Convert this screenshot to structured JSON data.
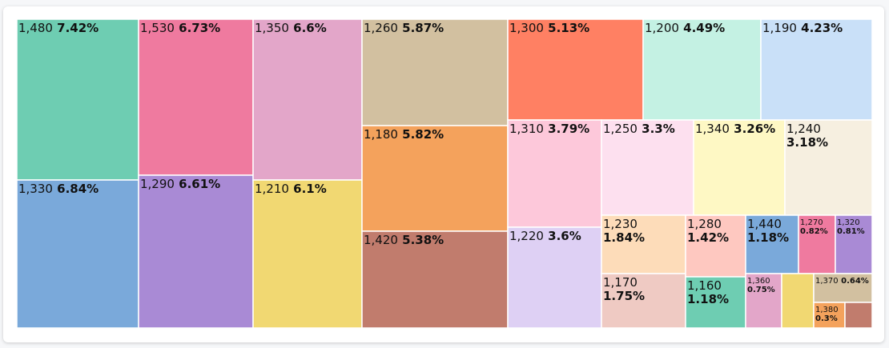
{
  "chart_data": {
    "type": "treemap",
    "title": "",
    "items": [
      {
        "value": "1,480",
        "percent": "7.42%",
        "color": "#6ecdb2"
      },
      {
        "value": "1,330",
        "percent": "6.84%",
        "color": "#7aa9da"
      },
      {
        "value": "1,530",
        "percent": "6.73%",
        "color": "#ef7a9f"
      },
      {
        "value": "1,290",
        "percent": "6.61%",
        "color": "#a98ad5"
      },
      {
        "value": "1,350",
        "percent": "6.6%",
        "color": "#e3a6c9"
      },
      {
        "value": "1,210",
        "percent": "6.1%",
        "color": "#f1d872"
      },
      {
        "value": "1,260",
        "percent": "5.87%",
        "color": "#d2c0a0"
      },
      {
        "value": "1,180",
        "percent": "5.82%",
        "color": "#f4a25c"
      },
      {
        "value": "1,420",
        "percent": "5.38%",
        "color": "#c17c6d"
      },
      {
        "value": "1,300",
        "percent": "5.13%",
        "color": "#ff8063"
      },
      {
        "value": "1,200",
        "percent": "4.49%",
        "color": "#c4f1e3"
      },
      {
        "value": "1,190",
        "percent": "4.23%",
        "color": "#c9e0f8"
      },
      {
        "value": "1,310",
        "percent": "3.79%",
        "color": "#fdc8da"
      },
      {
        "value": "1,220",
        "percent": "3.6%",
        "color": "#ded0f4"
      },
      {
        "value": "1,250",
        "percent": "3.3%",
        "color": "#fde0ef"
      },
      {
        "value": "1,340",
        "percent": "3.26%",
        "color": "#fef8c4"
      },
      {
        "value": "1,240",
        "percent": "3.18%",
        "color": "#f6efe0"
      },
      {
        "value": "1,230",
        "percent": "1.84%",
        "color": "#fddcb9"
      },
      {
        "value": "1,170",
        "percent": "1.75%",
        "color": "#efcac3"
      },
      {
        "value": "1,280",
        "percent": "1.42%",
        "color": "#fec8c0"
      },
      {
        "value": "1,160",
        "percent": "1.18%",
        "color": "#6ecdb2"
      },
      {
        "value": "1,440",
        "percent": "1.18%",
        "color": "#7aa9da"
      },
      {
        "value": "1,270",
        "percent": "0.82%",
        "color": "#ef7a9f"
      },
      {
        "value": "1,320",
        "percent": "0.81%",
        "color": "#a98ad5"
      },
      {
        "value": "1,360",
        "percent": "0.75%",
        "color": "#e3a6c9"
      },
      {
        "value": "",
        "percent": "",
        "color": "#f1d872"
      },
      {
        "value": "1,370",
        "percent": "0.64%",
        "color": "#d2c0a0"
      },
      {
        "value": "1,380",
        "percent": "0.3%",
        "color": "#f4a25c"
      },
      {
        "value": "",
        "percent": "",
        "color": "#c17c6d"
      }
    ]
  }
}
